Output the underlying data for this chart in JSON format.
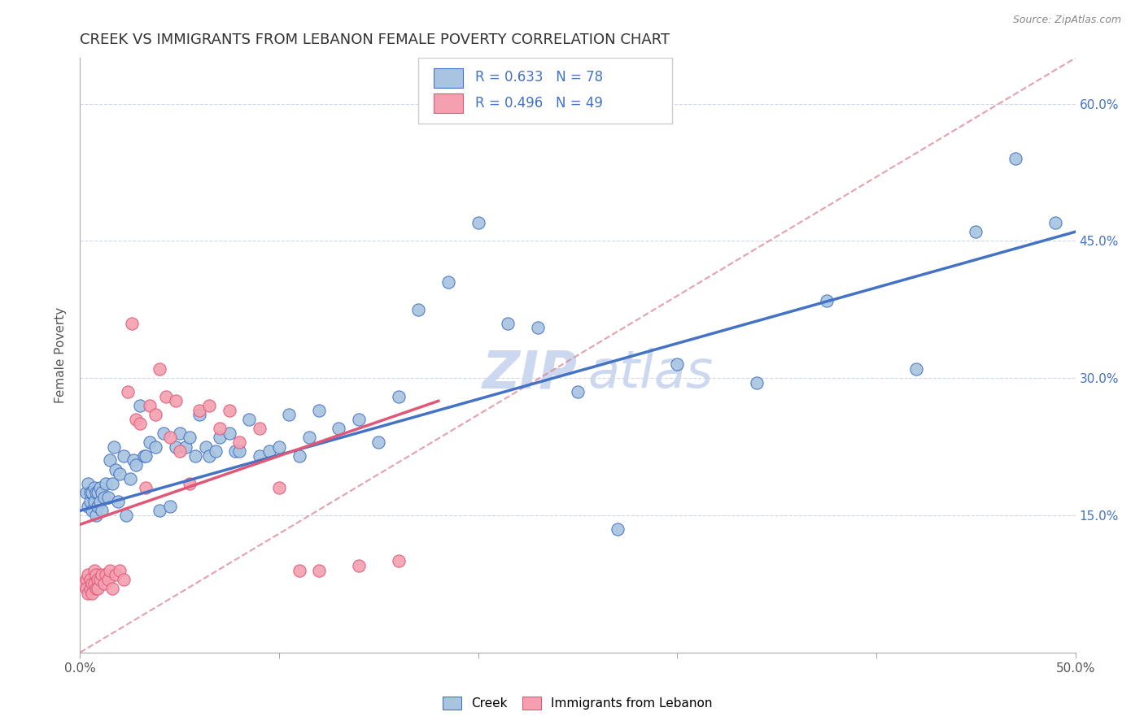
{
  "title": "CREEK VS IMMIGRANTS FROM LEBANON FEMALE POVERTY CORRELATION CHART",
  "source": "Source: ZipAtlas.com",
  "ylabel": "Female Poverty",
  "xlim": [
    0.0,
    0.5
  ],
  "ylim": [
    0.0,
    0.65
  ],
  "xticks": [
    0.0,
    0.1,
    0.2,
    0.3,
    0.4,
    0.5
  ],
  "yticks": [
    0.0,
    0.15,
    0.3,
    0.45,
    0.6
  ],
  "xticklabels": [
    "0.0%",
    "",
    "",
    "",
    "",
    "50.0%"
  ],
  "yticklabels": [
    "",
    "15.0%",
    "30.0%",
    "45.0%",
    "60.0%"
  ],
  "legend_labels": [
    "Creek",
    "Immigrants from Lebanon"
  ],
  "color_blue": "#a8c4e0",
  "color_pink": "#f4a0b0",
  "edge_blue": "#4472c4",
  "edge_pink": "#e05878",
  "line_blue": "#4472c4",
  "line_pink": "#e05878",
  "line_dashed_color": "#e08898",
  "title_fontsize": 13,
  "axis_label_fontsize": 11,
  "tick_fontsize": 11,
  "watermark_color": "#ccd8f0",
  "background_color": "#ffffff",
  "grid_color": "#d0d8e8",
  "right_tick_color": "#4472c4",
  "creek_x": [
    0.003,
    0.004,
    0.004,
    0.005,
    0.005,
    0.006,
    0.006,
    0.007,
    0.007,
    0.008,
    0.008,
    0.009,
    0.009,
    0.01,
    0.01,
    0.011,
    0.011,
    0.012,
    0.013,
    0.014,
    0.015,
    0.016,
    0.017,
    0.018,
    0.019,
    0.02,
    0.022,
    0.023,
    0.025,
    0.027,
    0.028,
    0.03,
    0.032,
    0.033,
    0.035,
    0.038,
    0.04,
    0.042,
    0.045,
    0.048,
    0.05,
    0.053,
    0.055,
    0.058,
    0.06,
    0.063,
    0.065,
    0.068,
    0.07,
    0.075,
    0.078,
    0.08,
    0.085,
    0.09,
    0.095,
    0.1,
    0.105,
    0.11,
    0.115,
    0.12,
    0.13,
    0.14,
    0.15,
    0.16,
    0.17,
    0.185,
    0.2,
    0.215,
    0.23,
    0.25,
    0.27,
    0.3,
    0.34,
    0.375,
    0.42,
    0.45,
    0.47,
    0.49
  ],
  "creek_y": [
    0.175,
    0.16,
    0.185,
    0.165,
    0.175,
    0.155,
    0.175,
    0.165,
    0.18,
    0.15,
    0.175,
    0.16,
    0.175,
    0.165,
    0.18,
    0.155,
    0.175,
    0.17,
    0.185,
    0.17,
    0.21,
    0.185,
    0.225,
    0.2,
    0.165,
    0.195,
    0.215,
    0.15,
    0.19,
    0.21,
    0.205,
    0.27,
    0.215,
    0.215,
    0.23,
    0.225,
    0.155,
    0.24,
    0.16,
    0.225,
    0.24,
    0.225,
    0.235,
    0.215,
    0.26,
    0.225,
    0.215,
    0.22,
    0.235,
    0.24,
    0.22,
    0.22,
    0.255,
    0.215,
    0.22,
    0.225,
    0.26,
    0.215,
    0.235,
    0.265,
    0.245,
    0.255,
    0.23,
    0.28,
    0.375,
    0.405,
    0.47,
    0.36,
    0.355,
    0.285,
    0.135,
    0.315,
    0.295,
    0.385,
    0.31,
    0.46,
    0.54,
    0.47
  ],
  "lebanon_x": [
    0.002,
    0.003,
    0.003,
    0.004,
    0.004,
    0.005,
    0.005,
    0.006,
    0.006,
    0.007,
    0.007,
    0.008,
    0.008,
    0.009,
    0.009,
    0.01,
    0.011,
    0.012,
    0.013,
    0.014,
    0.015,
    0.016,
    0.018,
    0.02,
    0.022,
    0.024,
    0.026,
    0.028,
    0.03,
    0.033,
    0.035,
    0.038,
    0.04,
    0.043,
    0.045,
    0.048,
    0.05,
    0.055,
    0.06,
    0.065,
    0.07,
    0.075,
    0.08,
    0.09,
    0.1,
    0.11,
    0.12,
    0.14,
    0.16
  ],
  "lebanon_y": [
    0.075,
    0.08,
    0.07,
    0.065,
    0.085,
    0.08,
    0.07,
    0.075,
    0.065,
    0.09,
    0.075,
    0.07,
    0.085,
    0.08,
    0.07,
    0.08,
    0.085,
    0.075,
    0.085,
    0.08,
    0.09,
    0.07,
    0.085,
    0.09,
    0.08,
    0.285,
    0.36,
    0.255,
    0.25,
    0.18,
    0.27,
    0.26,
    0.31,
    0.28,
    0.235,
    0.275,
    0.22,
    0.185,
    0.265,
    0.27,
    0.245,
    0.265,
    0.23,
    0.245,
    0.18,
    0.09,
    0.09,
    0.095,
    0.1
  ],
  "blue_line_x0": 0.0,
  "blue_line_y0": 0.155,
  "blue_line_x1": 0.5,
  "blue_line_y1": 0.46,
  "pink_line_x0": 0.0,
  "pink_line_y0": 0.14,
  "pink_line_x1": 0.18,
  "pink_line_y1": 0.275,
  "dash_line_x0": 0.0,
  "dash_line_y0": 0.0,
  "dash_line_x1": 0.5,
  "dash_line_y1": 0.65
}
